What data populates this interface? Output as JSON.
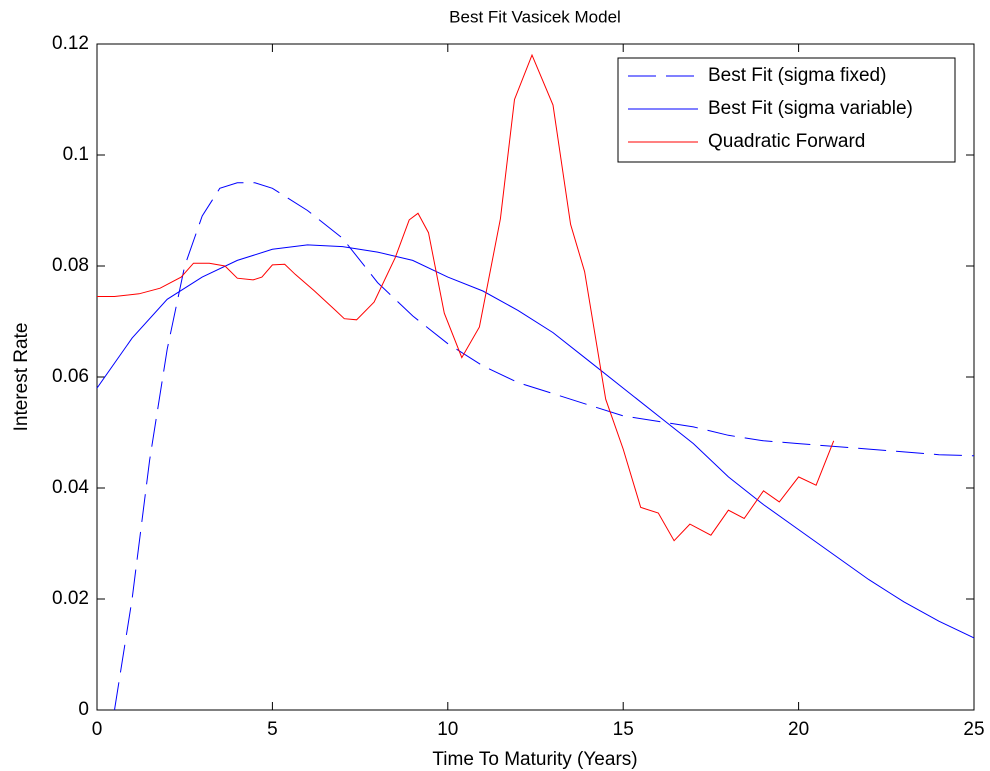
{
  "chart_data": {
    "type": "line",
    "title": "Best Fit Vasicek Model",
    "x_label": "Time To Maturity (Years)",
    "y_label": "Interest Rate",
    "xlim": [
      0,
      25
    ],
    "xticks": [
      0,
      5,
      10,
      15,
      20,
      25
    ],
    "ylim": [
      0,
      0.12
    ],
    "yticks": [
      0,
      0.02,
      0.04,
      0.06,
      0.08,
      0.1,
      0.12
    ],
    "legend": "upper-right",
    "series": [
      {
        "name": "Best Fit (sigma fixed)",
        "color": "#0000ff",
        "dashed": true,
        "x": [
          0.5,
          1,
          1.5,
          2,
          2.5,
          3,
          3.5,
          4,
          4.5,
          5,
          6,
          7,
          8,
          9,
          10,
          11,
          12,
          13,
          14,
          15,
          16,
          17,
          18,
          19,
          20,
          21,
          22,
          23,
          24,
          25
        ],
        "values": [
          0,
          0.02,
          0.045,
          0.065,
          0.08,
          0.089,
          0.094,
          0.095,
          0.095,
          0.094,
          0.09,
          0.085,
          0.077,
          0.071,
          0.066,
          0.062,
          0.059,
          0.057,
          0.055,
          0.053,
          0.052,
          0.051,
          0.0495,
          0.0485,
          0.048,
          0.0475,
          0.047,
          0.0465,
          0.046,
          0.0458
        ]
      },
      {
        "name": "Best Fit (sigma variable)",
        "color": "#0000ff",
        "dashed": false,
        "x": [
          0,
          1,
          2,
          3,
          4,
          5,
          6,
          7,
          8,
          9,
          10,
          11,
          12,
          13,
          14,
          15,
          16,
          17,
          18,
          19,
          20,
          21,
          22,
          23,
          24,
          25
        ],
        "values": [
          0.058,
          0.067,
          0.074,
          0.078,
          0.081,
          0.083,
          0.0838,
          0.0835,
          0.0825,
          0.081,
          0.078,
          0.0755,
          0.072,
          0.068,
          0.063,
          0.058,
          0.053,
          0.048,
          0.042,
          0.037,
          0.0325,
          0.028,
          0.0235,
          0.0195,
          0.016,
          0.013
        ]
      },
      {
        "name": "Quadratic Forward",
        "color": "#ff0000",
        "dashed": false,
        "x": [
          0,
          0.5,
          1.2,
          1.8,
          2.4,
          2.75,
          3.2,
          3.65,
          4.0,
          4.45,
          4.7,
          5.0,
          5.35,
          5.65,
          6.2,
          6.8,
          7.05,
          7.4,
          7.9,
          8.5,
          8.9,
          9.15,
          9.45,
          9.9,
          10.4,
          10.9,
          11.5,
          11.9,
          12.4,
          13.0,
          13.5,
          13.9,
          14.5,
          15.0,
          15.5,
          16.0,
          16.45,
          16.9,
          17.5,
          18.0,
          18.45,
          19.0,
          19.45,
          20.0,
          20.5,
          21.0
        ],
        "values": [
          0.0745,
          0.0745,
          0.075,
          0.076,
          0.078,
          0.0805,
          0.0805,
          0.08,
          0.0778,
          0.0775,
          0.078,
          0.0802,
          0.0803,
          0.0785,
          0.0755,
          0.072,
          0.0705,
          0.0703,
          0.0735,
          0.0815,
          0.0883,
          0.0895,
          0.086,
          0.0715,
          0.0635,
          0.069,
          0.0885,
          0.11,
          0.118,
          0.109,
          0.0875,
          0.079,
          0.056,
          0.047,
          0.0365,
          0.0355,
          0.0305,
          0.0335,
          0.0315,
          0.036,
          0.0345,
          0.0395,
          0.0375,
          0.042,
          0.0405,
          0.0485
        ]
      }
    ]
  }
}
